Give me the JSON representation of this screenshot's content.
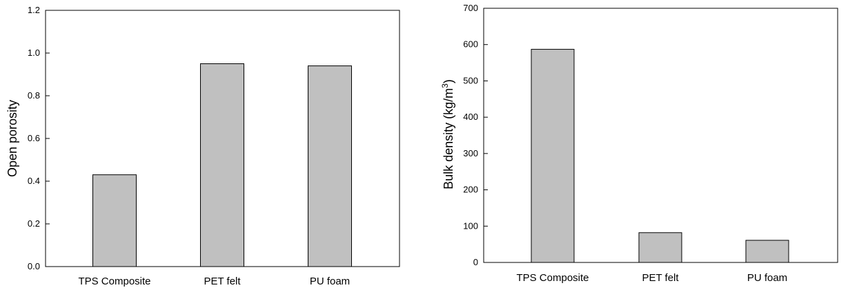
{
  "chart_data": [
    {
      "type": "bar",
      "categories": [
        "TPS Composite",
        "PET felt",
        "PU foam"
      ],
      "values": [
        0.43,
        0.95,
        0.94
      ],
      "xlabel": "",
      "ylabel": "Open porosity",
      "ylim": [
        0,
        1.2
      ],
      "yticks": [
        "0.0",
        "0.2",
        "0.4",
        "0.6",
        "0.8",
        "1.0",
        "1.2"
      ],
      "grid": false,
      "bar_color": "#c0c0c0"
    },
    {
      "type": "bar",
      "categories": [
        "TPS Composite",
        "PET felt",
        "PU foam"
      ],
      "values": [
        587,
        82,
        61
      ],
      "xlabel": "",
      "ylabel": "Bulk density  (kg/m",
      "ylabel_sup": "3",
      "ylabel_suffix": ")",
      "ylim": [
        0,
        700
      ],
      "yticks": [
        "0",
        "100",
        "200",
        "300",
        "400",
        "500",
        "600",
        "700"
      ],
      "grid": false,
      "bar_color": "#c0c0c0"
    }
  ]
}
